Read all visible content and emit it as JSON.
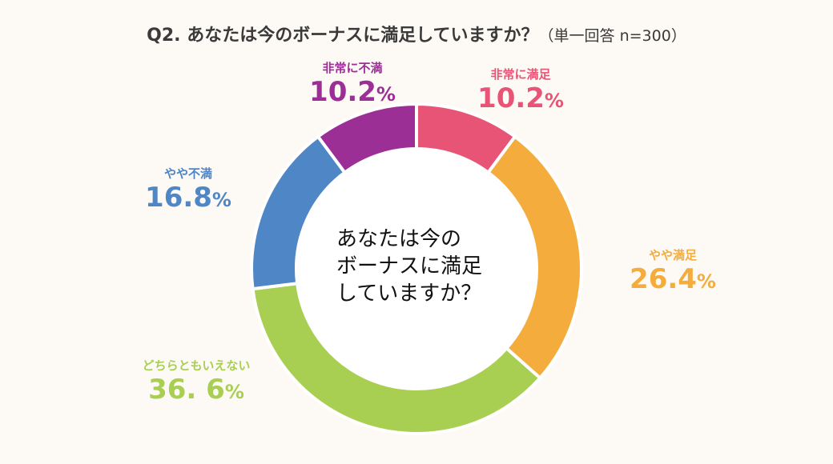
{
  "title": {
    "main": "Q2. あなたは今のボーナスに満足していますか？",
    "sub": "（単一回答 n=300）"
  },
  "center_label": {
    "line1": "あなたは今の",
    "line2": "ボーナスに満足",
    "line3": "していますか？"
  },
  "chart_data": {
    "type": "pie",
    "title": "Q2. あなたは今のボーナスに満足していますか？（単一回答 n=300）",
    "unit": "%",
    "slices": [
      {
        "label": "非常に満足",
        "value": 10.2,
        "display": "10.2",
        "color": "#e85476"
      },
      {
        "label": "やや満足",
        "value": 26.4,
        "display": "26.4",
        "color": "#f4ad3d"
      },
      {
        "label": "どちらともいえない",
        "value": 36.6,
        "display": "36. 6",
        "color": "#a9cf52"
      },
      {
        "label": "やや不満",
        "value": 16.8,
        "display": "16.8",
        "color": "#4f86c6"
      },
      {
        "label": "非常に不満",
        "value": 10.2,
        "display": "10.2",
        "color": "#9b2f96"
      }
    ]
  }
}
